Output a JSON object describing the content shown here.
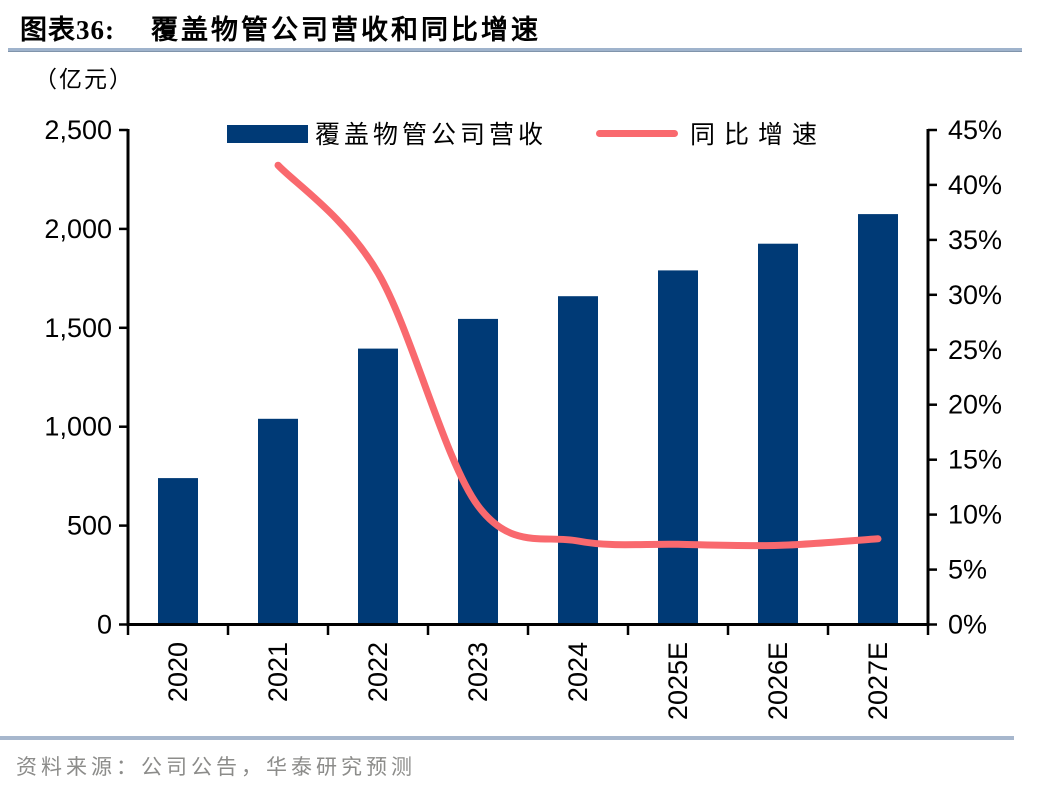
{
  "figure": {
    "label": "图表36:",
    "title": "覆盖物管公司营收和同比增速",
    "source": "资料来源：公司公告，华泰研究预测"
  },
  "colors": {
    "bar": "#003a76",
    "line": "#f9696e",
    "axis": "#000000",
    "title_divider": "#9fb3cc",
    "source_divider": "#a7b7cd",
    "source_text": "#8c8c8a"
  },
  "chart_data": {
    "type": "bar",
    "title": "覆盖物管公司营收和同比增速",
    "categories": [
      "2020",
      "2021",
      "2022",
      "2023",
      "2024",
      "2025E",
      "2026E",
      "2027E"
    ],
    "series": [
      {
        "name": "覆盖物管公司营收",
        "type": "bar",
        "axis": "left",
        "unit": "亿元",
        "color": "#003a76",
        "values": [
          740,
          1040,
          1395,
          1545,
          1660,
          1790,
          1925,
          2075
        ]
      },
      {
        "name": "同比增速",
        "type": "line",
        "axis": "right",
        "unit": "%",
        "color": "#f9696e",
        "values": [
          null,
          41.8,
          32.0,
          10.8,
          7.6,
          7.3,
          7.2,
          7.8
        ]
      }
    ],
    "left_axis": {
      "label": "（亿元）",
      "min": 0,
      "max": 2500,
      "step": 500,
      "tick_labels": [
        "0",
        "500",
        "1,000",
        "1,500",
        "2,000",
        "2,500"
      ]
    },
    "right_axis": {
      "min": 0,
      "max": 45,
      "step": 5,
      "tick_labels": [
        "0%",
        "5%",
        "10%",
        "15%",
        "20%",
        "25%",
        "30%",
        "35%",
        "40%",
        "45%"
      ]
    },
    "legend_position": "top",
    "grid": false,
    "smooth_line": true
  }
}
